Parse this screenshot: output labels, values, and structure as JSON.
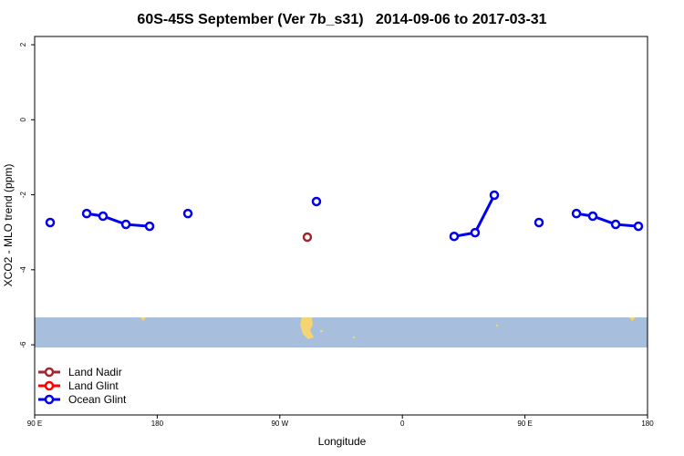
{
  "chart_data": {
    "type": "line",
    "title": "60S-45S September (Ver 7b_s31)   2014-09-06 to 2017-03-31",
    "xlabel": "Longitude",
    "ylabel": "XCO2 - MLO trend (ppm)",
    "xlim": [
      90,
      540
    ],
    "ylim": [
      -7.87,
      2.22
    ],
    "xticks": [
      {
        "value": 90,
        "label": "90 E"
      },
      {
        "value": 180,
        "label": "180"
      },
      {
        "value": 270,
        "label": "90 W"
      },
      {
        "value": 360,
        "label": "0"
      },
      {
        "value": 450,
        "label": "90 E"
      },
      {
        "value": 540,
        "label": "180"
      }
    ],
    "yticks": [
      2,
      0,
      -2,
      -4,
      -6
    ],
    "legend": "bottom-left",
    "series": [
      {
        "name": "Land Nadir",
        "color": "#a0282d",
        "x": [
          290.2
        ],
        "values": [
          -3.13
        ]
      },
      {
        "name": "Land Glint",
        "color": "#ff0000",
        "x": [],
        "values": []
      },
      {
        "name": "Ocean Glint",
        "color": "#0000ee",
        "x": [
          101.4,
          null,
          128.2,
          140.2,
          157.0,
          174.4,
          null,
          202.5,
          null,
          296.9,
          null,
          398.0,
          413.4,
          427.5,
          null,
          460.3,
          null,
          487.8,
          499.8,
          516.6,
          533.3
        ],
        "values": [
          -2.74,
          null,
          -2.5,
          -2.57,
          -2.79,
          -2.84,
          null,
          -2.5,
          null,
          -2.18,
          null,
          -3.11,
          -3.01,
          -2.01,
          null,
          -2.74,
          null,
          -2.5,
          -2.57,
          -2.79,
          -2.84
        ]
      }
    ]
  }
}
